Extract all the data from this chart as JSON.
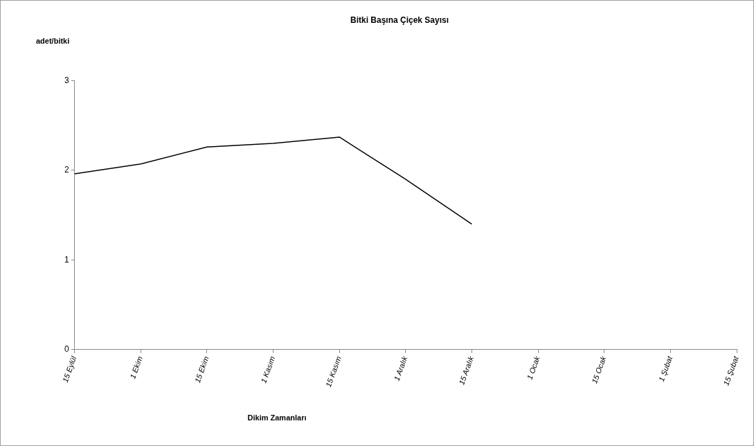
{
  "chart_data": {
    "type": "line",
    "title": "Bitki Başına Çiçek Sayısı",
    "ylabel": "adet/bitki",
    "xlabel": "Dikim Zamanları",
    "categories": [
      "15 Eylül",
      "1 Ekim",
      "15 Ekim",
      "1 Kasım",
      "15 Kasım",
      "1 Aralık",
      "15 Aralık",
      "1 Ocak",
      "15 Ocak",
      "1 Şubat",
      "15 Şubat"
    ],
    "series": [
      {
        "color": "#000000",
        "values": [
          1.96,
          2.07,
          2.26,
          2.3,
          2.37,
          1.9,
          1.4,
          null,
          null,
          null,
          null
        ]
      }
    ],
    "ylim": [
      0,
      3
    ],
    "yticks": [
      0,
      1,
      2,
      3
    ],
    "marker": "none",
    "line_style": "solid"
  }
}
